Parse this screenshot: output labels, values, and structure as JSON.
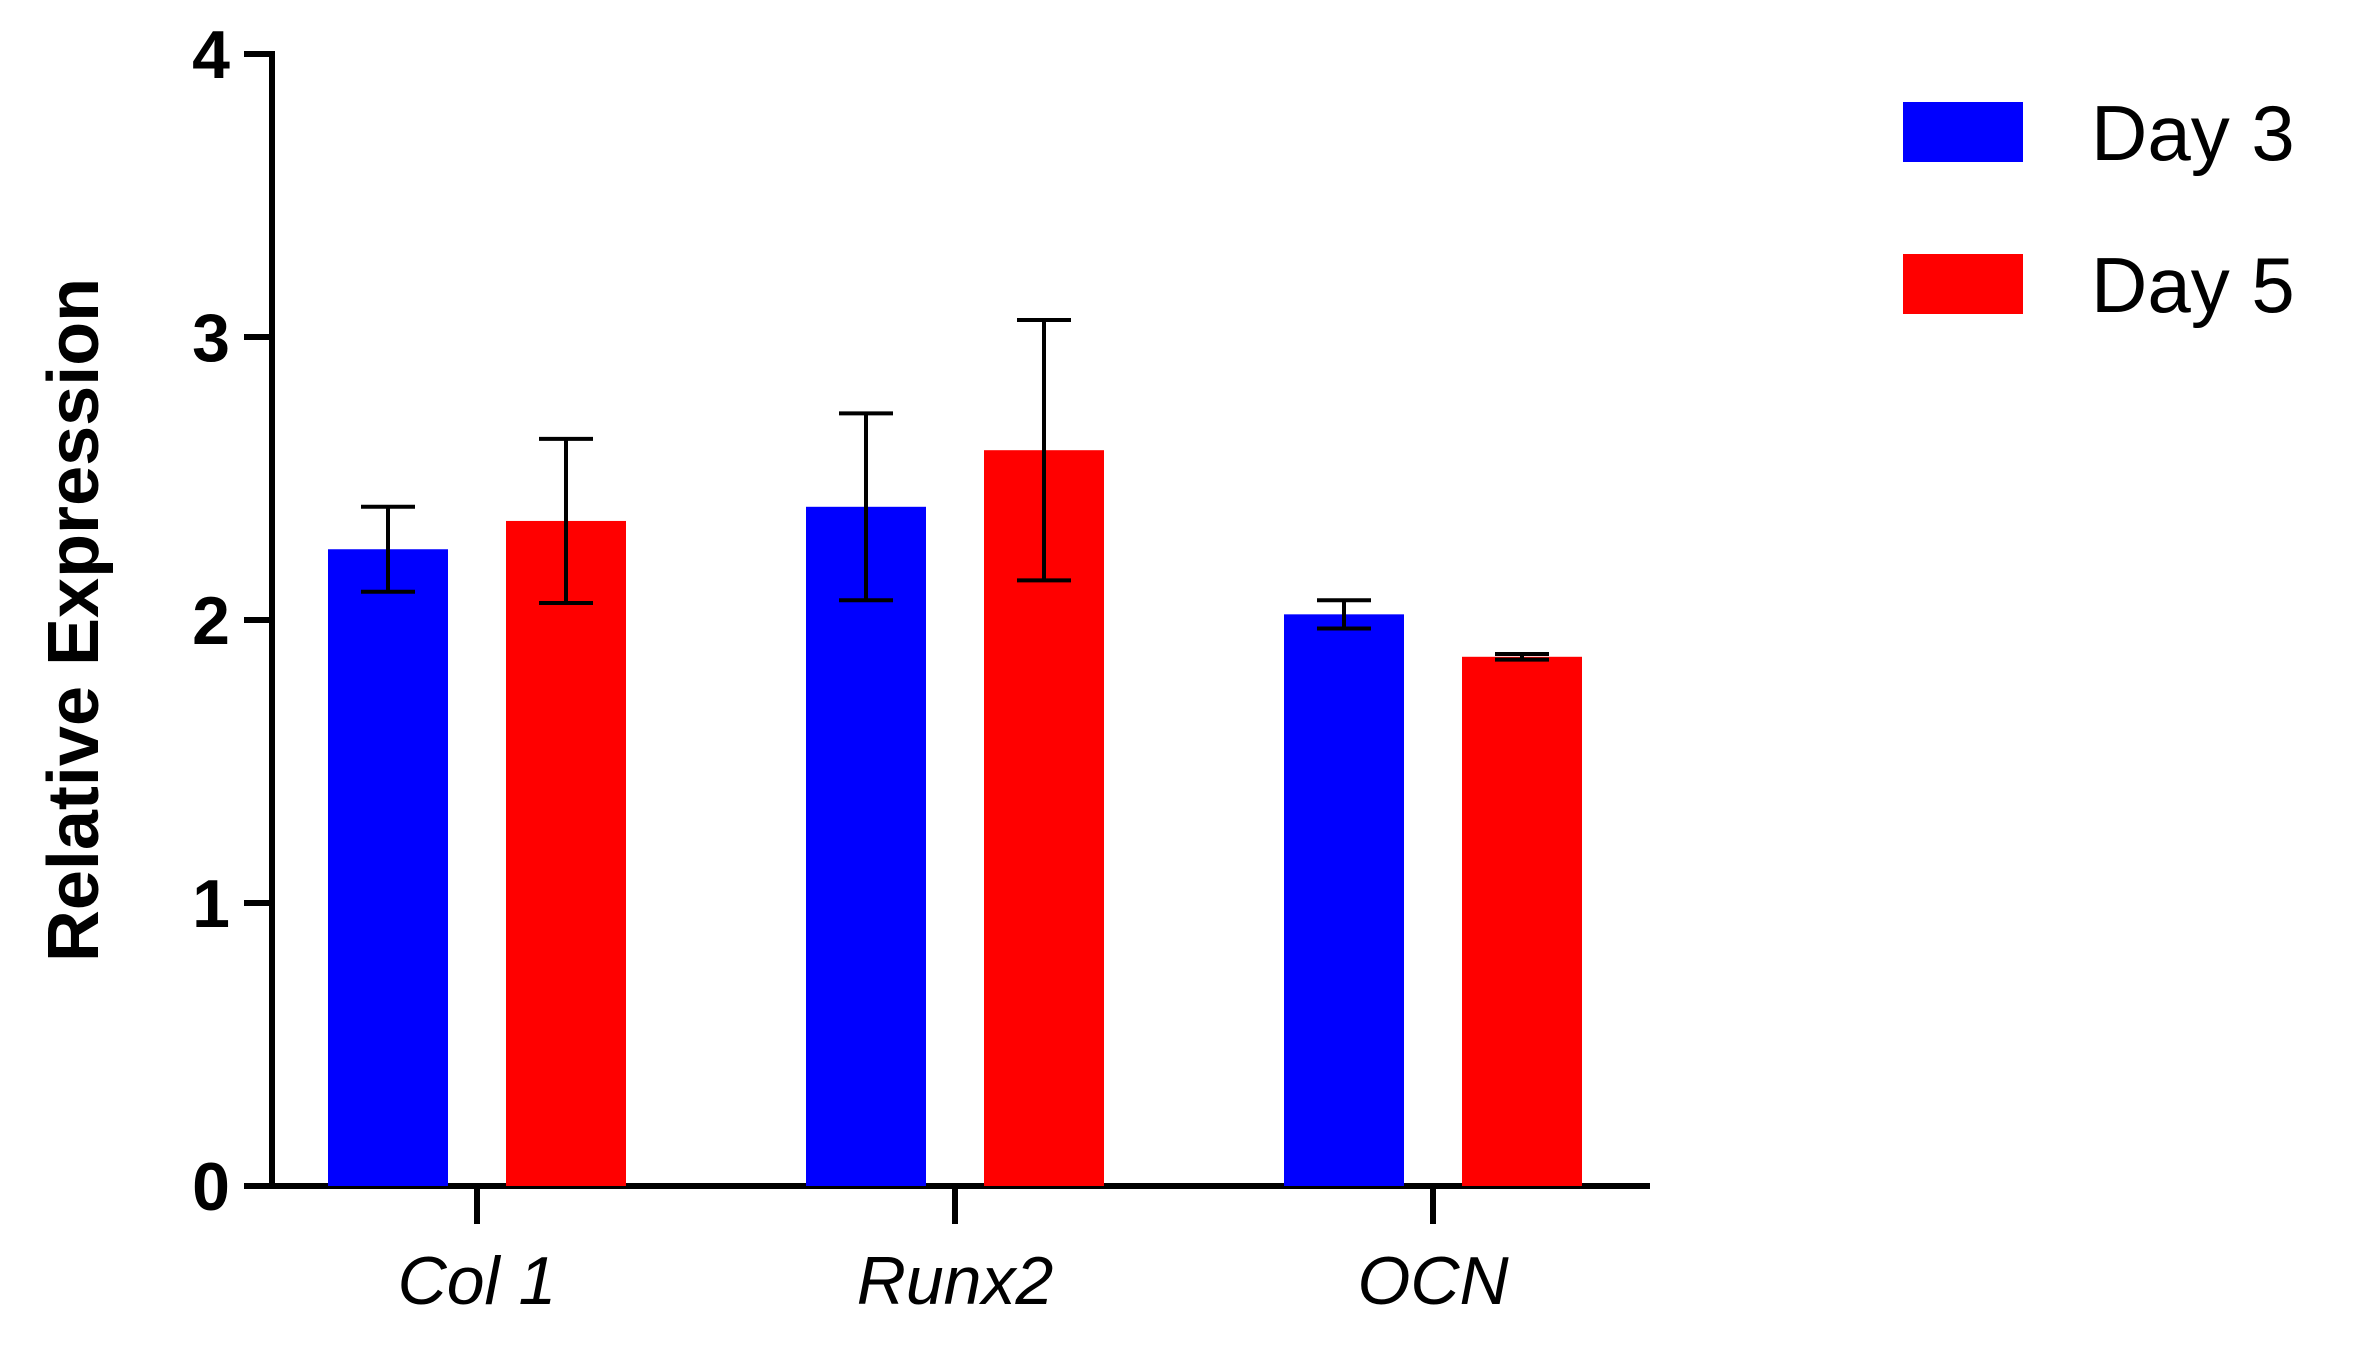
{
  "chart_data": {
    "type": "bar",
    "title": "",
    "xlabel": "",
    "ylabel": "Relative Expression",
    "ylim": [
      0,
      4
    ],
    "yticks": [
      0,
      1,
      2,
      3,
      4
    ],
    "grid": false,
    "legend_position": "top-right",
    "categories": [
      "Col 1",
      "Runx2",
      "OCN"
    ],
    "series": [
      {
        "name": "Day 3",
        "color": "#0000ff",
        "values": [
          2.25,
          2.4,
          2.02
        ],
        "errors": [
          0.15,
          0.33,
          0.05
        ]
      },
      {
        "name": "Day 5",
        "color": "#ff0000",
        "values": [
          2.35,
          2.6,
          1.87
        ],
        "errors": [
          0.29,
          0.46,
          0.01
        ]
      }
    ]
  }
}
